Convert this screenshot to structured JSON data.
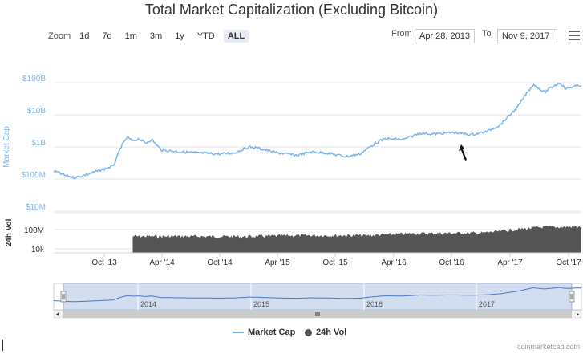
{
  "title": "Total Market Capitalization (Excluding Bitcoin)",
  "zoom": {
    "label": "Zoom",
    "buttons": [
      "1d",
      "7d",
      "1m",
      "3m",
      "1y",
      "YTD",
      "ALL"
    ],
    "active": "ALL"
  },
  "range": {
    "from_label": "From",
    "from_value": "Apr 28, 2013",
    "to_label": "To",
    "to_value": "Nov 9, 2017"
  },
  "menu_icon": "hamburger-icon",
  "colors": {
    "market_cap": "#7cb5ec",
    "volume": "#555555"
  },
  "chart_data": {
    "type": "line",
    "title": "Total Market Capitalization (Excluding Bitcoin)",
    "x_range": [
      "2013-04-28",
      "2017-11-09"
    ],
    "x_ticks": [
      "Oct '13",
      "Apr '14",
      "Oct '14",
      "Apr '15",
      "Oct '15",
      "Apr '16",
      "Oct '16",
      "Apr '17",
      "Oct '17"
    ],
    "market_cap_axis": {
      "label": "Market Cap",
      "scale": "log",
      "ticks": [
        "$100B",
        "$10B",
        "$1B",
        "$100M",
        "$10M"
      ]
    },
    "volume_axis": {
      "label": "24h Vol",
      "scale": "log",
      "ticks": [
        "100M",
        "10k"
      ]
    },
    "navigator_labels": [
      "2014",
      "2015",
      "2016",
      "2017"
    ],
    "series": [
      {
        "name": "Market Cap",
        "unit": "USD",
        "points": [
          [
            "2013-04-28",
            180000000
          ],
          [
            "2013-06-01",
            130000000
          ],
          [
            "2013-07-01",
            110000000
          ],
          [
            "2013-08-01",
            130000000
          ],
          [
            "2013-09-15",
            180000000
          ],
          [
            "2013-11-01",
            250000000
          ],
          [
            "2013-11-25",
            1000000000
          ],
          [
            "2013-12-15",
            2000000000
          ],
          [
            "2014-01-01",
            1500000000
          ],
          [
            "2014-01-20",
            1800000000
          ],
          [
            "2014-02-10",
            1300000000
          ],
          [
            "2014-03-01",
            1700000000
          ],
          [
            "2014-04-01",
            800000000
          ],
          [
            "2014-06-01",
            700000000
          ],
          [
            "2014-08-01",
            650000000
          ],
          [
            "2014-10-01",
            600000000
          ],
          [
            "2014-11-15",
            650000000
          ],
          [
            "2015-01-01",
            1000000000
          ],
          [
            "2015-02-01",
            900000000
          ],
          [
            "2015-04-01",
            650000000
          ],
          [
            "2015-06-01",
            550000000
          ],
          [
            "2015-07-15",
            700000000
          ],
          [
            "2015-09-01",
            650000000
          ],
          [
            "2015-11-01",
            500000000
          ],
          [
            "2015-12-15",
            600000000
          ],
          [
            "2016-01-15",
            1000000000
          ],
          [
            "2016-03-01",
            1800000000
          ],
          [
            "2016-05-01",
            1700000000
          ],
          [
            "2016-06-20",
            2700000000
          ],
          [
            "2016-08-01",
            2500000000
          ],
          [
            "2016-10-01",
            2800000000
          ],
          [
            "2016-12-01",
            2400000000
          ],
          [
            "2017-01-15",
            3000000000
          ],
          [
            "2017-03-01",
            5000000000
          ],
          [
            "2017-03-25",
            9000000000
          ],
          [
            "2017-04-20",
            16000000000
          ],
          [
            "2017-05-20",
            45000000000
          ],
          [
            "2017-06-12",
            90000000000
          ],
          [
            "2017-07-15",
            50000000000
          ],
          [
            "2017-08-15",
            80000000000
          ],
          [
            "2017-09-03",
            100000000000
          ],
          [
            "2017-09-20",
            65000000000
          ],
          [
            "2017-10-15",
            75000000000
          ],
          [
            "2017-11-09",
            85000000000
          ]
        ]
      },
      {
        "name": "24h Vol",
        "unit": "USD",
        "type": "area",
        "points": [
          [
            "2014-01-01",
            4000000
          ],
          [
            "2014-06-01",
            4000000
          ],
          [
            "2015-01-01",
            3500000
          ],
          [
            "2015-06-01",
            6000000
          ],
          [
            "2016-01-01",
            6000000
          ],
          [
            "2016-06-01",
            15000000
          ],
          [
            "2017-01-01",
            20000000
          ],
          [
            "2017-04-01",
            80000000
          ],
          [
            "2017-07-01",
            300000000
          ],
          [
            "2017-11-09",
            400000000
          ]
        ]
      }
    ],
    "annotations": [
      "cursor-arrow-icon near Oct '16"
    ],
    "legend": {
      "position": "bottom-center",
      "items": [
        "Market Cap",
        "24h Vol"
      ]
    },
    "grid": true
  },
  "credit": "coinmarketcap.com"
}
